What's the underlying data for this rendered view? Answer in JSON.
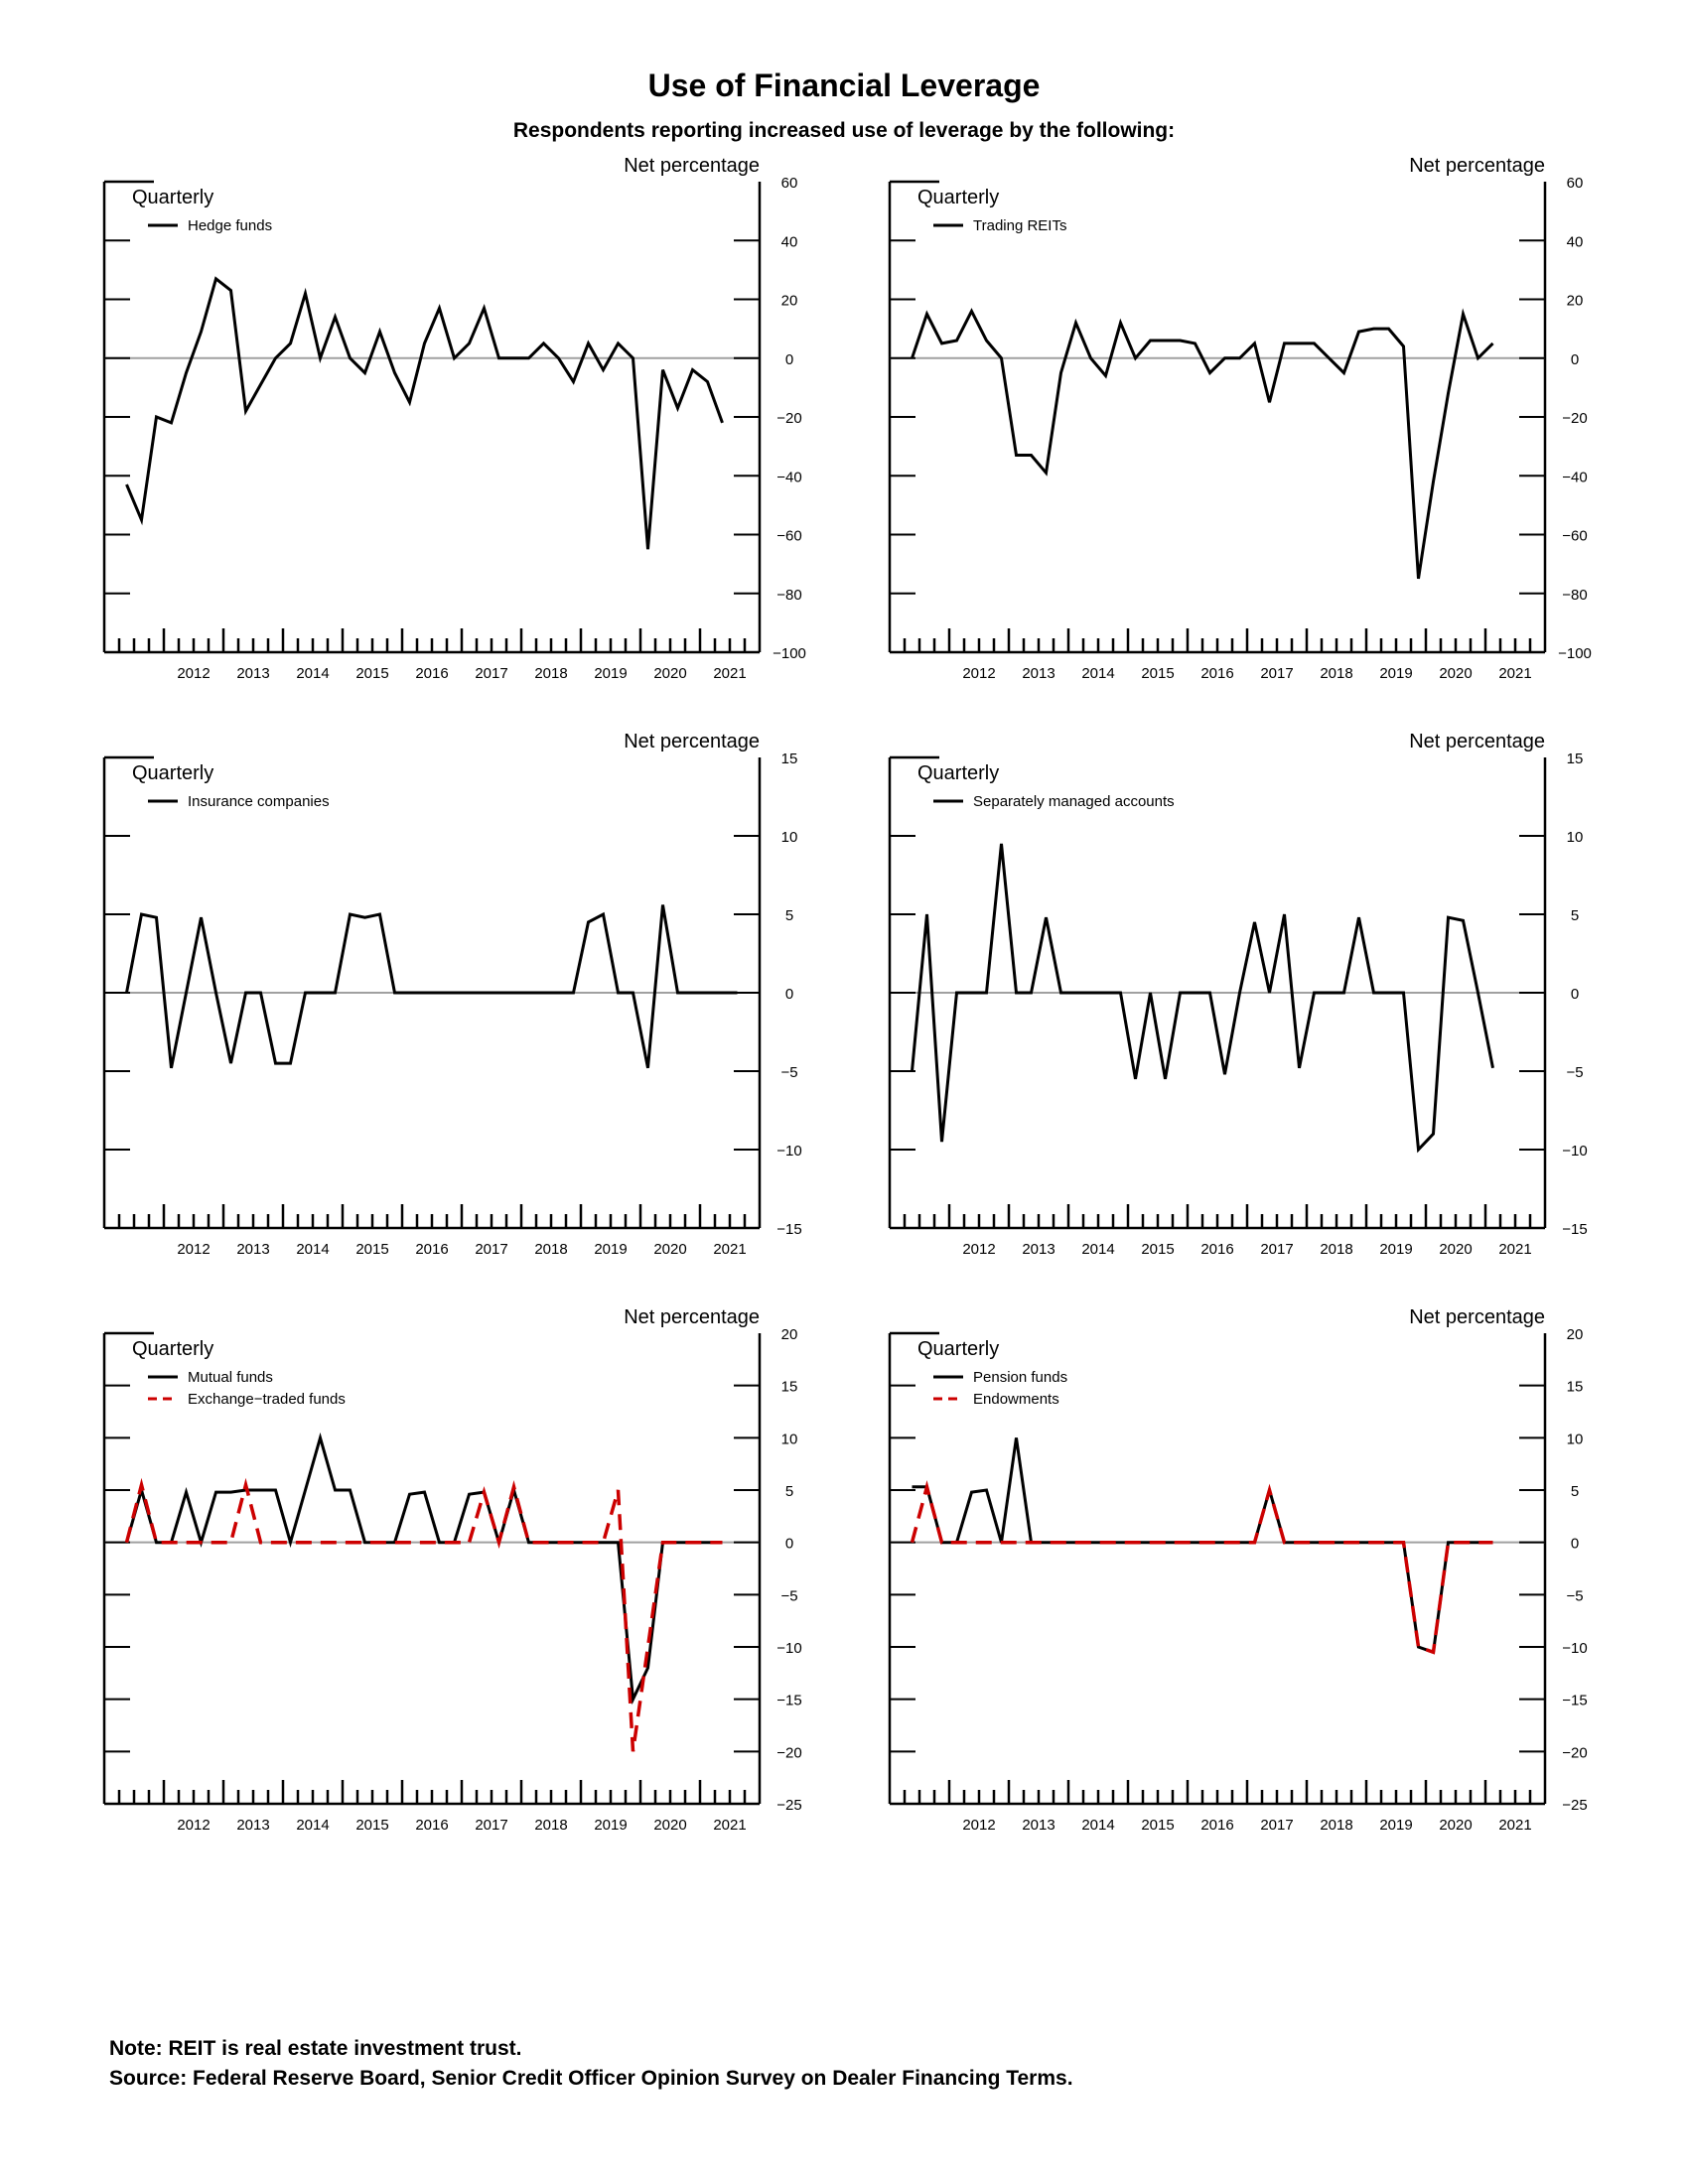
{
  "title": "Use of Financial Leverage",
  "subtitle": "Respondents reporting increased use of leverage by the following:",
  "note": "Note:  REIT is real estate investment trust.",
  "source": "Source:  Federal Reserve Board, Senior Credit Officer Opinion Survey on Dealer Financing Terms.",
  "colors": {
    "solid": "#000000",
    "dashed": "#cc0000",
    "zero_line": "#a0a0a0"
  },
  "chart_data": [
    {
      "type": "line",
      "frequency_label": "Quarterly",
      "ylabel": "Net percentage",
      "x_labels": [
        "2012",
        "2013",
        "2014",
        "2015",
        "2016",
        "2017",
        "2018",
        "2019",
        "2020",
        "2021"
      ],
      "x_range": [
        "2011 Q1",
        "2021 Q4"
      ],
      "ylim": [
        -100,
        60
      ],
      "yticks": [
        60,
        40,
        20,
        0,
        -20,
        -40,
        -60,
        -80,
        -100
      ],
      "legend_position": "top-left",
      "series": [
        {
          "name": "Hedge funds",
          "style": "solid",
          "start": "2011 Q2",
          "values": [
            -43,
            -55,
            -20,
            -22,
            -5,
            9,
            27,
            23,
            -18,
            -9,
            0,
            5,
            22,
            0,
            14,
            0,
            -5,
            9,
            -5,
            -15,
            5,
            17,
            0,
            5,
            17,
            0,
            0,
            0,
            5,
            0,
            -8,
            5,
            -4,
            5,
            0,
            -65,
            -4,
            -17,
            -4,
            -8,
            -22
          ]
        }
      ]
    },
    {
      "type": "line",
      "frequency_label": "Quarterly",
      "ylabel": "Net percentage",
      "x_labels": [
        "2012",
        "2013",
        "2014",
        "2015",
        "2016",
        "2017",
        "2018",
        "2019",
        "2020",
        "2021"
      ],
      "x_range": [
        "2011 Q1",
        "2021 Q4"
      ],
      "ylim": [
        -100,
        60
      ],
      "yticks": [
        60,
        40,
        20,
        0,
        -20,
        -40,
        -60,
        -80,
        -100
      ],
      "legend_position": "top-left",
      "series": [
        {
          "name": "Trading REITs",
          "style": "solid",
          "start": "2011 Q2",
          "values": [
            0,
            15,
            5,
            6,
            16,
            6,
            0,
            -33,
            -33,
            -39,
            -5,
            12,
            0,
            -6,
            12,
            0,
            6,
            6,
            6,
            5,
            -5,
            0,
            0,
            5,
            -15,
            5,
            5,
            5,
            0,
            -5,
            9,
            10,
            10,
            4,
            -75,
            -42,
            -12,
            15,
            0,
            5
          ]
        }
      ]
    },
    {
      "type": "line",
      "frequency_label": "Quarterly",
      "ylabel": "Net percentage",
      "x_labels": [
        "2012",
        "2013",
        "2014",
        "2015",
        "2016",
        "2017",
        "2018",
        "2019",
        "2020",
        "2021"
      ],
      "x_range": [
        "2011 Q1",
        "2021 Q4"
      ],
      "ylim": [
        -15,
        15
      ],
      "yticks": [
        15,
        10,
        5,
        0,
        -5,
        -10,
        -15
      ],
      "legend_position": "top-left",
      "series": [
        {
          "name": "Insurance companies",
          "style": "solid",
          "start": "2011 Q2",
          "values": [
            0,
            5,
            4.8,
            -4.8,
            0,
            4.8,
            0,
            -4.5,
            0,
            0,
            -4.5,
            -4.5,
            0,
            0,
            0,
            5,
            4.8,
            5,
            0,
            0,
            0,
            0,
            0,
            0,
            0,
            0,
            0,
            0,
            0,
            0,
            0,
            4.5,
            5,
            0,
            0,
            -4.8,
            5.6,
            0,
            0,
            0,
            0,
            0
          ]
        }
      ]
    },
    {
      "type": "line",
      "frequency_label": "Quarterly",
      "ylabel": "Net percentage",
      "x_labels": [
        "2012",
        "2013",
        "2014",
        "2015",
        "2016",
        "2017",
        "2018",
        "2019",
        "2020",
        "2021"
      ],
      "x_range": [
        "2011 Q1",
        "2021 Q4"
      ],
      "ylim": [
        -15,
        15
      ],
      "yticks": [
        15,
        10,
        5,
        0,
        -5,
        -10,
        -15
      ],
      "legend_position": "top-left",
      "series": [
        {
          "name": "Separately managed accounts",
          "style": "solid",
          "start": "2011 Q2",
          "values": [
            -5,
            5,
            -9.5,
            0,
            0,
            0,
            9.5,
            0,
            0,
            4.8,
            0,
            0,
            0,
            0,
            0,
            -5.5,
            0,
            -5.5,
            0,
            0,
            0,
            -5.2,
            0,
            4.5,
            0,
            5,
            -4.8,
            0,
            0,
            0,
            4.8,
            0,
            0,
            0,
            -10,
            -9,
            4.8,
            4.6,
            0,
            -4.8
          ]
        }
      ]
    },
    {
      "type": "line",
      "frequency_label": "Quarterly",
      "ylabel": "Net percentage",
      "x_labels": [
        "2012",
        "2013",
        "2014",
        "2015",
        "2016",
        "2017",
        "2018",
        "2019",
        "2020",
        "2021"
      ],
      "x_range": [
        "2011 Q1",
        "2021 Q4"
      ],
      "ylim": [
        -25,
        20
      ],
      "yticks": [
        20,
        15,
        10,
        5,
        0,
        -5,
        -10,
        -15,
        -20,
        -25
      ],
      "legend_position": "top-left",
      "series": [
        {
          "name": "Mutual funds",
          "style": "solid",
          "start": "2011 Q2",
          "values": [
            0,
            5,
            0,
            0,
            4.8,
            0,
            4.8,
            4.8,
            5,
            5,
            5,
            0,
            5,
            10,
            5,
            5,
            0,
            0,
            0,
            4.6,
            4.8,
            0,
            0,
            4.6,
            4.8,
            0,
            5,
            0,
            0,
            0,
            0,
            0,
            0,
            0,
            -15,
            -12,
            0,
            0,
            0,
            0,
            0
          ]
        },
        {
          "name": "Exchange−traded funds",
          "style": "dashed",
          "start": "2011 Q2",
          "values": [
            0,
            5.5,
            0,
            0,
            0,
            0,
            0,
            0,
            5.5,
            0,
            0,
            0,
            0,
            0,
            0,
            0,
            0,
            0,
            0,
            0,
            0,
            0,
            0,
            0,
            4.8,
            0,
            5.3,
            0,
            0,
            0,
            0,
            0,
            0,
            5,
            -20,
            -10,
            0,
            0,
            0,
            0,
            0
          ]
        }
      ]
    },
    {
      "type": "line",
      "frequency_label": "Quarterly",
      "ylabel": "Net percentage",
      "x_labels": [
        "2012",
        "2013",
        "2014",
        "2015",
        "2016",
        "2017",
        "2018",
        "2019",
        "2020",
        "2021"
      ],
      "x_range": [
        "2011 Q1",
        "2021 Q4"
      ],
      "ylim": [
        -25,
        20
      ],
      "yticks": [
        20,
        15,
        10,
        5,
        0,
        -5,
        -10,
        -15,
        -20,
        -25
      ],
      "legend_position": "top-left",
      "series": [
        {
          "name": "Pension funds",
          "style": "solid",
          "start": "2011 Q2",
          "values": [
            5.3,
            5.3,
            0,
            0,
            4.8,
            5,
            0,
            10,
            0,
            0,
            0,
            0,
            0,
            0,
            0,
            0,
            0,
            0,
            0,
            0,
            0,
            0,
            0,
            0,
            5,
            0,
            0,
            0,
            0,
            0,
            0,
            0,
            0,
            0,
            -10,
            -10.5,
            0,
            0,
            0,
            0
          ]
        },
        {
          "name": "Endowments",
          "style": "dashed",
          "start": "2011 Q2",
          "values": [
            0,
            5.3,
            0,
            0,
            0,
            0,
            0,
            0,
            0,
            0,
            0,
            0,
            0,
            0,
            0,
            0,
            0,
            0,
            0,
            0,
            0,
            0,
            0,
            0,
            5,
            0,
            0,
            0,
            0,
            0,
            0,
            0,
            0,
            0,
            -10,
            -10.5,
            0,
            0,
            0,
            0
          ]
        }
      ]
    }
  ]
}
